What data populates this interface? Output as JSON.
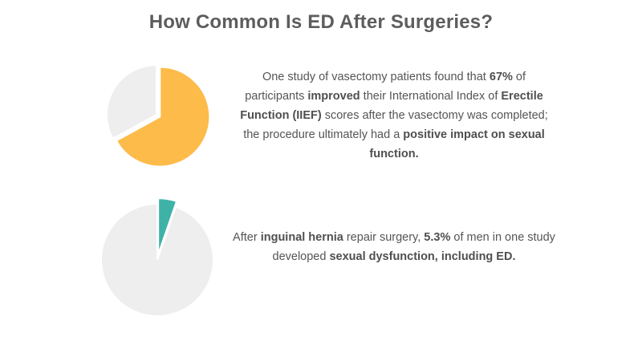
{
  "title": "How Common Is ED After Surgeries?",
  "colors": {
    "background": "#ffffff",
    "title": "#5d5d5d",
    "text": "#555555",
    "pie_rest": "#eeeeee",
    "pie1_highlight": "#fdbb4a",
    "pie2_highlight": "#3fb2a8"
  },
  "chart_data": [
    {
      "type": "pie",
      "exploded_slice": "highlighted",
      "slices": [
        {
          "value": 67,
          "color": "#fdbb4a"
        },
        {
          "value": 33,
          "color": "#eeeeee"
        }
      ],
      "caption_segments": [
        {
          "text": "One study of vasectomy patients found that ",
          "bold": false
        },
        {
          "text": "67%",
          "bold": true
        },
        {
          "text": " of participants ",
          "bold": false
        },
        {
          "text": "improved",
          "bold": true
        },
        {
          "text": " their International Index of ",
          "bold": false
        },
        {
          "text": "Erectile Function (IIEF)",
          "bold": true
        },
        {
          "text": " scores after the vasectomy was completed; the procedure ultimately had a ",
          "bold": false
        },
        {
          "text": "positive impact on sexual function.",
          "bold": true
        }
      ]
    },
    {
      "type": "pie",
      "exploded_slice": "highlighted",
      "slices": [
        {
          "value": 5.3,
          "color": "#3fb2a8"
        },
        {
          "value": 94.7,
          "color": "#eeeeee"
        }
      ],
      "caption_segments": [
        {
          "text": "After ",
          "bold": false
        },
        {
          "text": "inguinal hernia",
          "bold": true
        },
        {
          "text": " repair surgery, ",
          "bold": false
        },
        {
          "text": "5.3%",
          "bold": true
        },
        {
          "text": " of men in one study developed ",
          "bold": false
        },
        {
          "text": "sexual dysfunction, including ED.",
          "bold": true
        }
      ]
    }
  ]
}
